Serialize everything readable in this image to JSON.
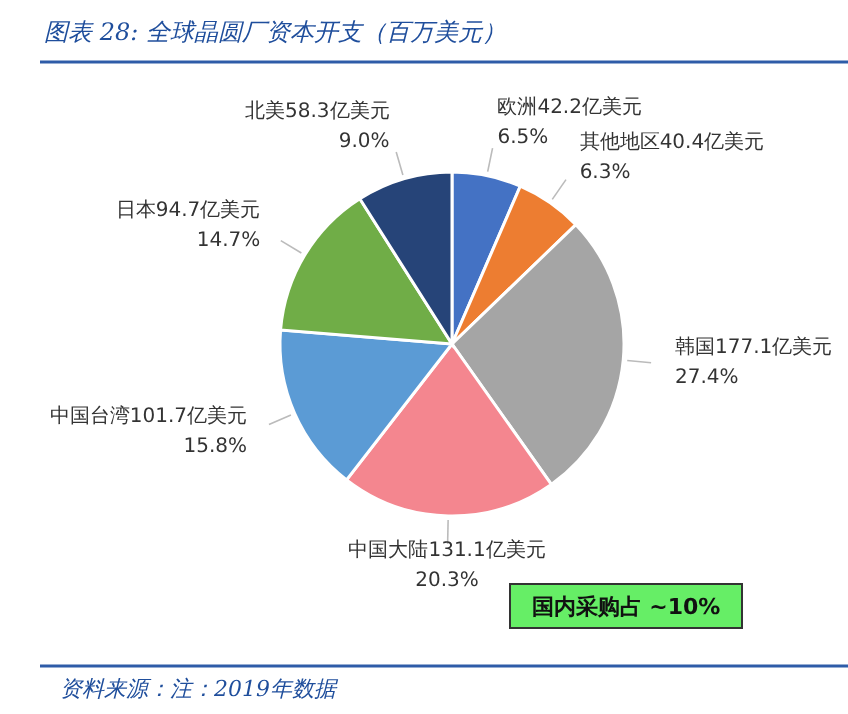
{
  "chart_data": {
    "type": "pie",
    "title": "图表 28:  全球晶圆厂资本开支（百万美元）",
    "categories": [
      "欧洲42.2亿美元",
      "其他地区40.4亿美元",
      "韩国177.1亿美元",
      "中国大陆131.1亿美元",
      "中国台湾101.7亿美元",
      "日本94.7亿美元",
      "北美58.3亿美元"
    ],
    "values": [
      6.5,
      6.3,
      27.4,
      20.3,
      15.8,
      14.7,
      9.0
    ],
    "colors": [
      "#4472c4",
      "#ed7d31",
      "#a5a5a5",
      "#f4868f",
      "#5b9bd5",
      "#70ad47",
      "#264478"
    ],
    "value_labels": [
      "6.5%",
      "6.3%",
      "27.4%",
      "20.3%",
      "15.8%",
      "14.7%",
      "9.0%"
    ],
    "annotations": [
      "国内采购占 ~10%",
      "资料来源：注：2019年数据"
    ]
  }
}
